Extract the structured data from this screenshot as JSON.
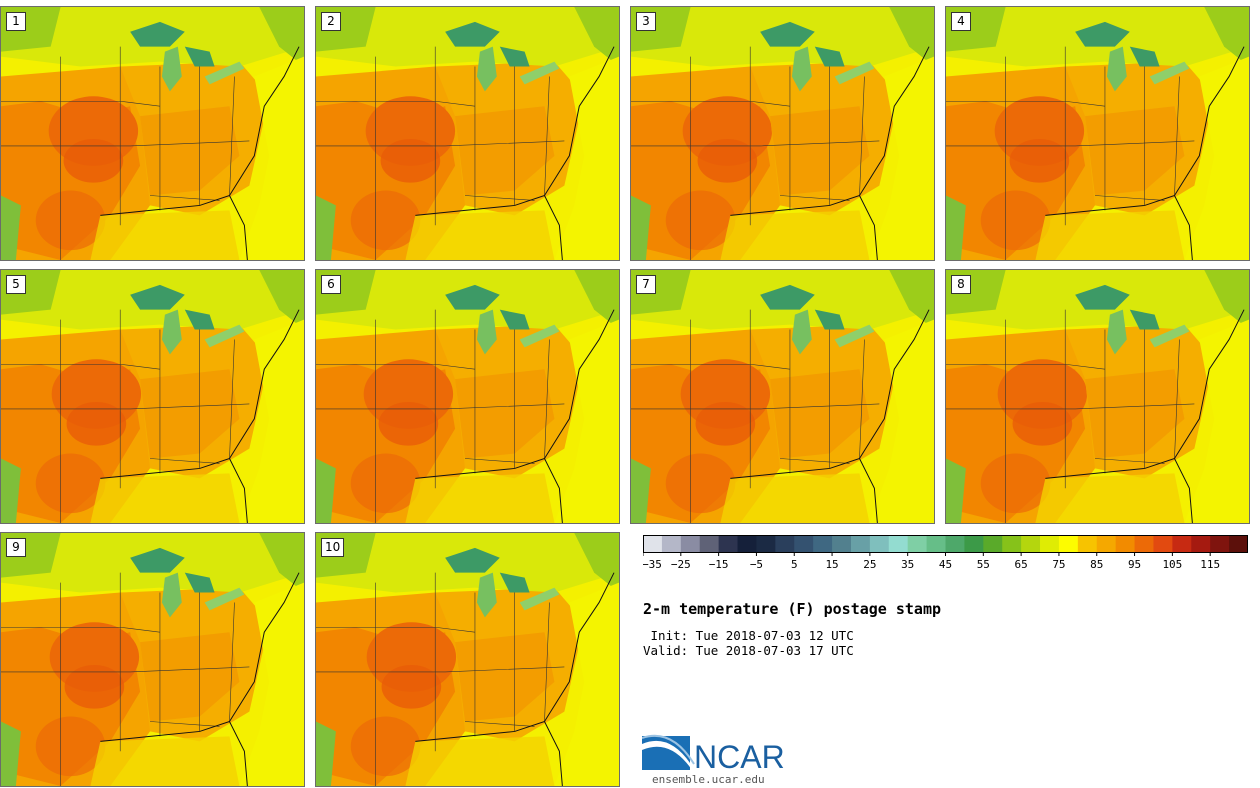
{
  "panels": [
    {
      "label": "1"
    },
    {
      "label": "2"
    },
    {
      "label": "3"
    },
    {
      "label": "4"
    },
    {
      "label": "5"
    },
    {
      "label": "6"
    },
    {
      "label": "7"
    },
    {
      "label": "8"
    },
    {
      "label": "9"
    },
    {
      "label": "10"
    }
  ],
  "colorbar": {
    "colors": [
      "#e0e3ea",
      "#b4b7c8",
      "#8a8ca3",
      "#5f6277",
      "#2d3450",
      "#15203a",
      "#1b2a44",
      "#2a3f5c",
      "#345270",
      "#3f6882",
      "#52808e",
      "#68a0a6",
      "#7fbfbd",
      "#93dcd0",
      "#7fcfa5",
      "#66be88",
      "#4ea86a",
      "#3c9a48",
      "#5aaa2a",
      "#86c21a",
      "#b4d60e",
      "#dfec04",
      "#fdfc00",
      "#f7c300",
      "#f5a800",
      "#f28b00",
      "#ec6a07",
      "#e24a10",
      "#c72a12",
      "#a51a10",
      "#7f140e",
      "#5c100b"
    ],
    "tick_labels": [
      "-35",
      "-25",
      "-15",
      "-5",
      "5",
      "15",
      "25",
      "35",
      "45",
      "55",
      "65",
      "75",
      "85",
      "95",
      "105",
      "115"
    ]
  },
  "title": "2-m temperature (F) postage stamp",
  "init_text": " Init: Tue 2018-07-03 12 UTC",
  "valid_text": "Valid: Tue 2018-07-03 17 UTC",
  "logo": {
    "name": "NCAR",
    "url": "ensemble.ucar.edu"
  }
}
